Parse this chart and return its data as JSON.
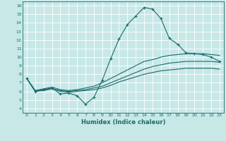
{
  "title": "",
  "xlabel": "Humidex (Indice chaleur)",
  "ylabel": "",
  "xlim": [
    -0.5,
    23.5
  ],
  "ylim": [
    3.5,
    16.5
  ],
  "yticks": [
    4,
    5,
    6,
    7,
    8,
    9,
    10,
    11,
    12,
    13,
    14,
    15,
    16
  ],
  "xticks": [
    0,
    1,
    2,
    3,
    4,
    5,
    6,
    7,
    8,
    9,
    10,
    11,
    12,
    13,
    14,
    15,
    16,
    17,
    18,
    19,
    20,
    21,
    22,
    23
  ],
  "xtick_labels": [
    "0",
    "1",
    "2",
    "3",
    "4",
    "5",
    "6",
    "7",
    "8",
    "9",
    "10",
    "11",
    "12",
    "13",
    "14",
    "15",
    "16",
    "17",
    "18",
    "19",
    "20",
    "21",
    "22",
    "23"
  ],
  "bg_color": "#c8e8e8",
  "line_color": "#1a6b6b",
  "grid_color": "#ffffff",
  "curves": [
    {
      "x": [
        0,
        1,
        2,
        3,
        4,
        5,
        6,
        7,
        8,
        9,
        10,
        11,
        12,
        13,
        14,
        15,
        16,
        17,
        18,
        19,
        20,
        21,
        22,
        23
      ],
      "y": [
        7.5,
        6.0,
        6.2,
        6.4,
        5.7,
        5.8,
        5.5,
        4.5,
        5.3,
        7.3,
        9.8,
        12.1,
        13.8,
        14.8,
        15.8,
        15.6,
        14.5,
        12.2,
        11.5,
        10.5,
        10.4,
        10.3,
        10.0,
        9.5
      ],
      "marker": "+"
    },
    {
      "x": [
        0,
        1,
        2,
        3,
        4,
        5,
        6,
        7,
        8,
        9,
        10,
        11,
        12,
        13,
        14,
        15,
        16,
        17,
        18,
        19,
        20,
        21,
        22,
        23
      ],
      "y": [
        7.5,
        6.1,
        6.3,
        6.5,
        6.2,
        6.1,
        6.2,
        6.4,
        6.6,
        7.0,
        7.5,
        8.0,
        8.5,
        9.0,
        9.5,
        9.7,
        10.0,
        10.2,
        10.3,
        10.4,
        10.4,
        10.4,
        10.3,
        10.2
      ],
      "marker": null
    },
    {
      "x": [
        0,
        1,
        2,
        3,
        4,
        5,
        6,
        7,
        8,
        9,
        10,
        11,
        12,
        13,
        14,
        15,
        16,
        17,
        18,
        19,
        20,
        21,
        22,
        23
      ],
      "y": [
        7.5,
        6.1,
        6.2,
        6.3,
        6.1,
        6.0,
        6.1,
        6.2,
        6.4,
        6.6,
        7.0,
        7.4,
        7.8,
        8.2,
        8.6,
        8.9,
        9.1,
        9.3,
        9.4,
        9.5,
        9.5,
        9.5,
        9.5,
        9.4
      ],
      "marker": null
    },
    {
      "x": [
        0,
        1,
        2,
        3,
        4,
        5,
        6,
        7,
        8,
        9,
        10,
        11,
        12,
        13,
        14,
        15,
        16,
        17,
        18,
        19,
        20,
        21,
        22,
        23
      ],
      "y": [
        7.5,
        6.0,
        6.1,
        6.3,
        6.0,
        5.9,
        6.0,
        6.1,
        6.2,
        6.4,
        6.7,
        7.1,
        7.4,
        7.7,
        8.0,
        8.2,
        8.4,
        8.5,
        8.6,
        8.7,
        8.7,
        8.7,
        8.7,
        8.6
      ],
      "marker": null
    }
  ]
}
